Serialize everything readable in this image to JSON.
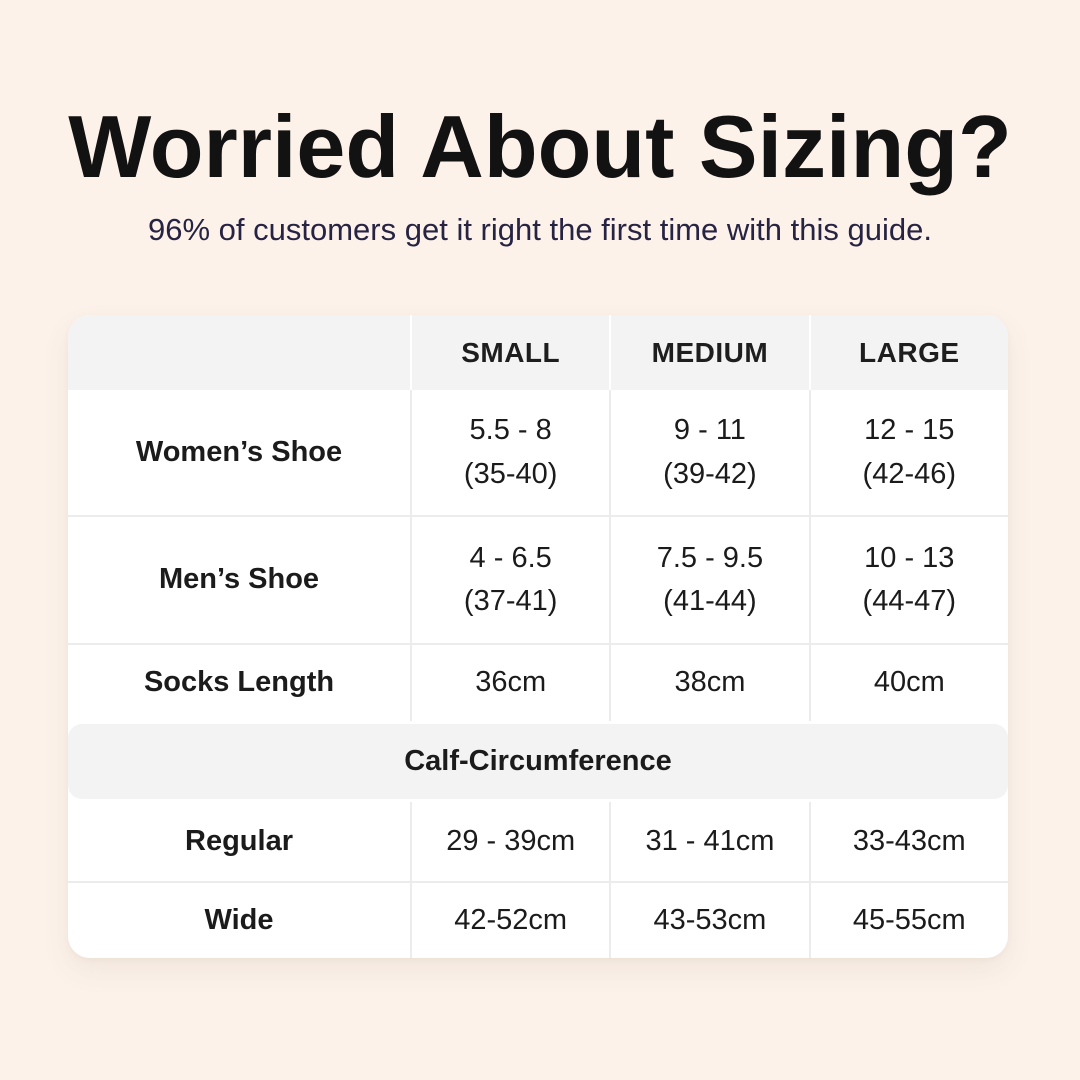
{
  "colors": {
    "page_background": "#fcf2ea",
    "card_background": "#ffffff",
    "band_background": "#f3f3f3",
    "grid_line": "#ececec",
    "title_text": "#121212",
    "subtitle_text": "#262343",
    "table_text": "#1b1b1b"
  },
  "header": {
    "title": "Worried About Sizing?",
    "subtitle": "96% of customers get it right the first time with this guide."
  },
  "table": {
    "columns": [
      "SMALL",
      "MEDIUM",
      "LARGE"
    ],
    "rows": [
      {
        "label": "Women’s Shoe",
        "small": {
          "line1": "5.5 - 8",
          "line2": "(35-40)"
        },
        "medium": {
          "line1": "9 - 11",
          "line2": "(39-42)"
        },
        "large": {
          "line1": "12 - 15",
          "line2": "(42-46)"
        }
      },
      {
        "label": "Men’s Shoe",
        "small": {
          "line1": "4 - 6.5",
          "line2": "(37-41)"
        },
        "medium": {
          "line1": "7.5 - 9.5",
          "line2": "(41-44)"
        },
        "large": {
          "line1": "10 - 13",
          "line2": "(44-47)"
        }
      },
      {
        "label": "Socks Length",
        "small": {
          "line1": "36cm"
        },
        "medium": {
          "line1": "38cm"
        },
        "large": {
          "line1": "40cm"
        }
      }
    ],
    "section": {
      "title": "Calf-Circumference",
      "rows": [
        {
          "label": "Regular",
          "small": "29 - 39cm",
          "medium": "31 - 41cm",
          "large": "33-43cm"
        },
        {
          "label": "Wide",
          "small": "42-52cm",
          "medium": "43-53cm",
          "large": "45-55cm"
        }
      ]
    }
  }
}
